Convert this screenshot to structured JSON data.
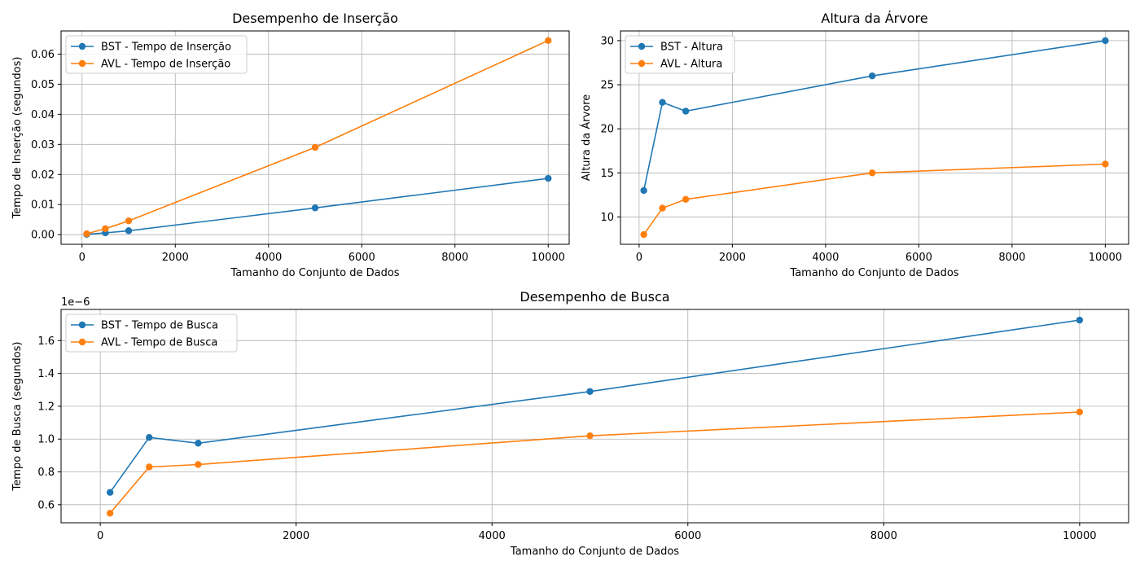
{
  "colors": {
    "bst": "#1f77b4",
    "avl": "#ff7f0e"
  },
  "chart_data": [
    {
      "type": "line",
      "title": "Desempenho de Inserção",
      "xlabel": "Tamanho do Conjunto de Dados",
      "ylabel": "Tempo de Inserção (segundos)",
      "x": [
        100,
        500,
        1000,
        5000,
        10000
      ],
      "xlim": [
        -450,
        10450
      ],
      "ylim": [
        -0.0032,
        0.0677
      ],
      "xticks": [
        0,
        2000,
        4000,
        6000,
        8000,
        10000
      ],
      "xtick_labels": [
        "0",
        "2000",
        "4000",
        "6000",
        "8000",
        "10000"
      ],
      "yticks": [
        0.0,
        0.01,
        0.02,
        0.03,
        0.04,
        0.05,
        0.06
      ],
      "ytick_labels": [
        "0.00",
        "0.01",
        "0.02",
        "0.03",
        "0.04",
        "0.05",
        "0.06"
      ],
      "scale_label": "",
      "grid": true,
      "legend_position": "upper-left",
      "series": [
        {
          "name": "BST - Tempo de Inserção",
          "color": "#1f77b4",
          "values": [
            0.0001,
            0.0006,
            0.0013,
            0.0089,
            0.0187
          ]
        },
        {
          "name": "AVL - Tempo de Inserção",
          "color": "#ff7f0e",
          "values": [
            0.0003,
            0.002,
            0.0046,
            0.029,
            0.0645
          ]
        }
      ]
    },
    {
      "type": "line",
      "title": "Altura da Árvore",
      "xlabel": "Tamanho do Conjunto de Dados",
      "ylabel": "Altura da Árvore",
      "x": [
        100,
        500,
        1000,
        5000,
        10000
      ],
      "xlim": [
        -400,
        10500
      ],
      "ylim": [
        6.9,
        31.1
      ],
      "xticks": [
        0,
        2000,
        4000,
        6000,
        8000,
        10000
      ],
      "xtick_labels": [
        "0",
        "2000",
        "4000",
        "6000",
        "8000",
        "10000"
      ],
      "yticks": [
        10,
        15,
        20,
        25,
        30
      ],
      "ytick_labels": [
        "10",
        "15",
        "20",
        "25",
        "30"
      ],
      "scale_label": "",
      "grid": true,
      "legend_position": "upper-left",
      "series": [
        {
          "name": "BST - Altura",
          "color": "#1f77b4",
          "values": [
            13,
            23,
            22,
            26,
            30
          ]
        },
        {
          "name": "AVL - Altura",
          "color": "#ff7f0e",
          "values": [
            8,
            11,
            12,
            15,
            16
          ]
        }
      ]
    },
    {
      "type": "line",
      "title": "Desempenho de Busca",
      "xlabel": "Tamanho do Conjunto de Dados",
      "ylabel": "Tempo de Busca (segundos)",
      "x": [
        100,
        500,
        1000,
        5000,
        10000
      ],
      "xlim": [
        -400,
        10500
      ],
      "ylim": [
        0.49,
        1.79
      ],
      "xticks": [
        0,
        2000,
        4000,
        6000,
        8000,
        10000
      ],
      "xtick_labels": [
        "0",
        "2000",
        "4000",
        "6000",
        "8000",
        "10000"
      ],
      "yticks": [
        0.6,
        0.8,
        1.0,
        1.2,
        1.4,
        1.6
      ],
      "ytick_labels": [
        "0.6",
        "0.8",
        "1.0",
        "1.2",
        "1.4",
        "1.6"
      ],
      "scale_label": "1e−6",
      "grid": true,
      "legend_position": "upper-left",
      "series": [
        {
          "name": "BST - Tempo de Busca",
          "color": "#1f77b4",
          "values": [
            0.675,
            1.01,
            0.975,
            1.29,
            1.725
          ]
        },
        {
          "name": "AVL - Tempo de Busca",
          "color": "#ff7f0e",
          "values": [
            0.548,
            0.83,
            0.845,
            1.02,
            1.165
          ]
        }
      ]
    }
  ]
}
